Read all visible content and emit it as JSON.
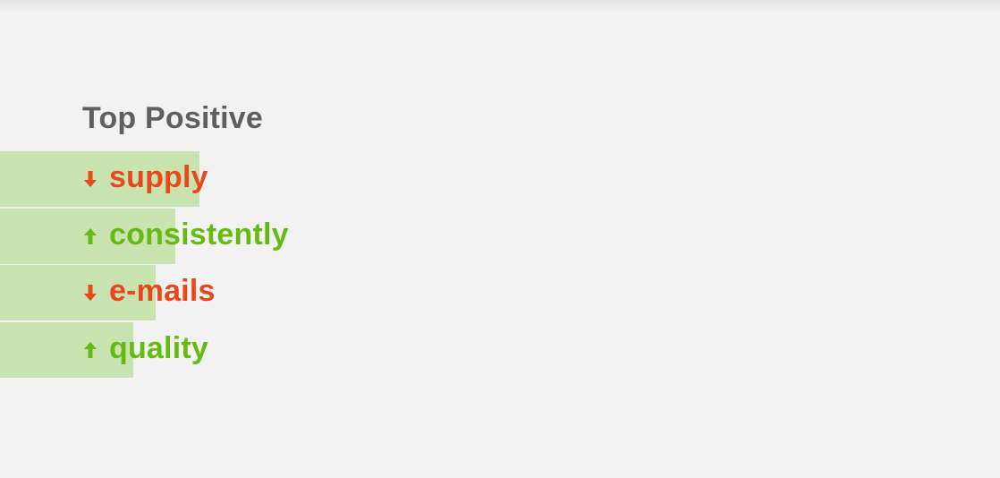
{
  "colors": {
    "background": "#f2f2f2",
    "bar": "#c8e3af",
    "title": "#5f5f5f",
    "up": "#66bb12",
    "down": "#e8481c"
  },
  "chart_data": {
    "type": "bar",
    "orientation": "horizontal",
    "title": "Top Positive",
    "categories": [
      "supply",
      "consistently",
      "e-mails",
      "quality"
    ],
    "values": [
      100,
      88,
      78,
      67
    ],
    "trend": [
      "down",
      "up",
      "down",
      "up"
    ],
    "xlabel": "",
    "ylabel": "",
    "xlim": [
      0,
      224
    ],
    "grid": false,
    "legend": "none"
  }
}
